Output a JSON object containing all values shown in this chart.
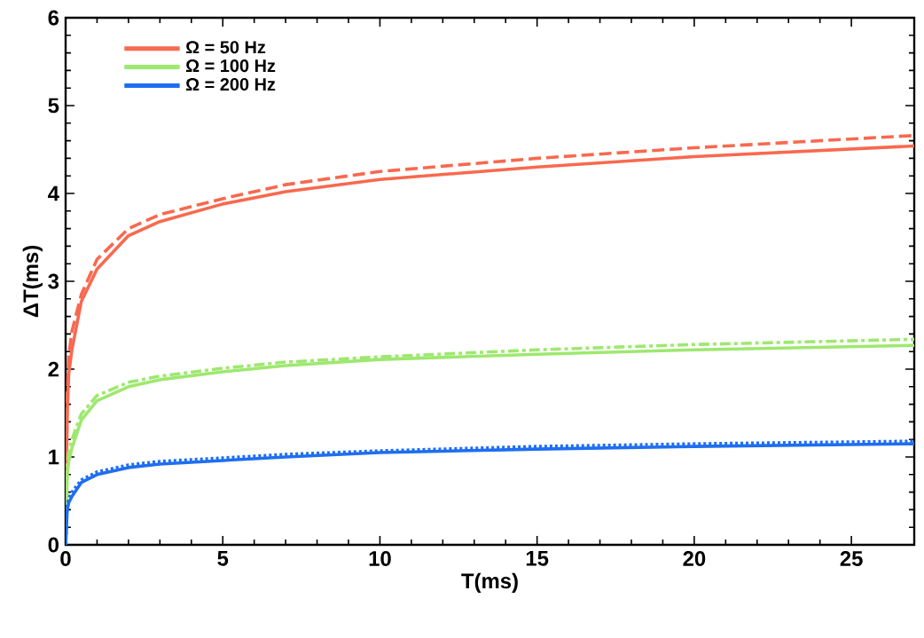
{
  "chart_data": {
    "type": "line",
    "xlabel": "T(ms)",
    "ylabel": "ΔT(ms)",
    "xlim": [
      0,
      27
    ],
    "ylim": [
      0,
      6
    ],
    "xticks": [
      0,
      5,
      10,
      15,
      20,
      25
    ],
    "yticks": [
      0,
      1,
      2,
      3,
      4,
      5,
      6
    ],
    "legend": "top left",
    "x": [
      0,
      0.05,
      0.1,
      0.2,
      0.5,
      1,
      2,
      3,
      5,
      7,
      10,
      15,
      20,
      27
    ],
    "series": [
      {
        "name": "Ω = 50 Hz",
        "color": "#f8694f",
        "line_style": "solid",
        "values": [
          0,
          1.5,
          1.95,
          2.22,
          2.77,
          3.14,
          3.52,
          3.68,
          3.88,
          4.02,
          4.16,
          4.3,
          4.42,
          4.54
        ]
      },
      {
        "color": "#f8694f",
        "line_style": "dashed",
        "values": [
          0,
          1.7,
          2.15,
          2.43,
          2.85,
          3.25,
          3.6,
          3.76,
          3.94,
          4.1,
          4.25,
          4.4,
          4.52,
          4.66
        ]
      },
      {
        "name": "Ω = 100 Hz",
        "color": "#9ee870",
        "line_style": "solid",
        "values": [
          0,
          0.8,
          0.95,
          1.1,
          1.42,
          1.64,
          1.8,
          1.88,
          1.97,
          2.04,
          2.11,
          2.17,
          2.22,
          2.27
        ]
      },
      {
        "color": "#9ee870",
        "line_style": "dashdot",
        "values": [
          0,
          0.9,
          1.05,
          1.2,
          1.49,
          1.7,
          1.85,
          1.92,
          2.01,
          2.08,
          2.14,
          2.22,
          2.28,
          2.34
        ]
      },
      {
        "name": "Ω = 200 Hz",
        "color": "#1f6ef0",
        "line_style": "solid",
        "values": [
          0,
          0.4,
          0.48,
          0.55,
          0.71,
          0.8,
          0.88,
          0.92,
          0.96,
          1.0,
          1.05,
          1.09,
          1.12,
          1.15
        ]
      },
      {
        "color": "#1f6ef0",
        "line_style": "dotted",
        "values": [
          0,
          0.45,
          0.53,
          0.6,
          0.74,
          0.83,
          0.91,
          0.95,
          0.99,
          1.03,
          1.07,
          1.12,
          1.15,
          1.18
        ]
      }
    ]
  }
}
